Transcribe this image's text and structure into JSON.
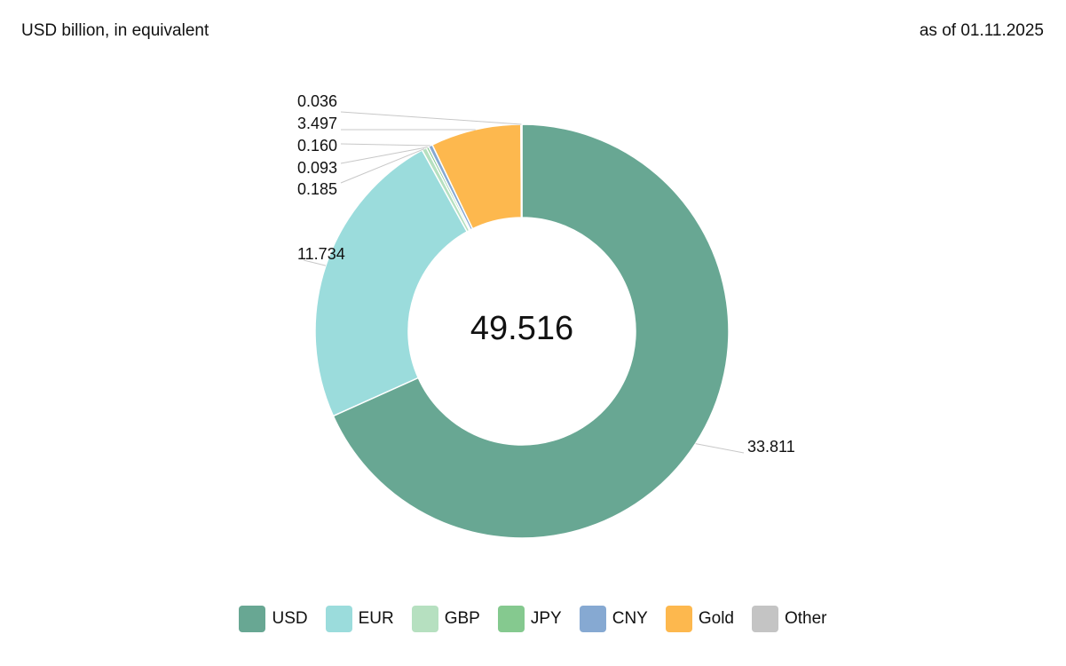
{
  "header": {
    "unit_note": "USD billion, in equivalent",
    "as_of": "as of 01.11.2025"
  },
  "chart_data": {
    "type": "pie",
    "variant": "donut",
    "title": "",
    "center_label": "49.516",
    "legend_position": "bottom",
    "slices": [
      {
        "name": "USD",
        "value": 33.811,
        "label": "33.811",
        "color": "#68a793"
      },
      {
        "name": "EUR",
        "value": 11.734,
        "label": "11.734",
        "color": "#9bdcdc"
      },
      {
        "name": "GBP",
        "value": 0.185,
        "label": "0.185",
        "color": "#b6e0c0"
      },
      {
        "name": "JPY",
        "value": 0.093,
        "label": "0.093",
        "color": "#85c98f"
      },
      {
        "name": "CNY",
        "value": 0.16,
        "label": "0.160",
        "color": "#86a9d2"
      },
      {
        "name": "Gold",
        "value": 3.497,
        "label": "3.497",
        "color": "#fdb84e"
      },
      {
        "name": "Other",
        "value": 0.036,
        "label": "0.036",
        "color": "#c4c4c4"
      }
    ]
  }
}
